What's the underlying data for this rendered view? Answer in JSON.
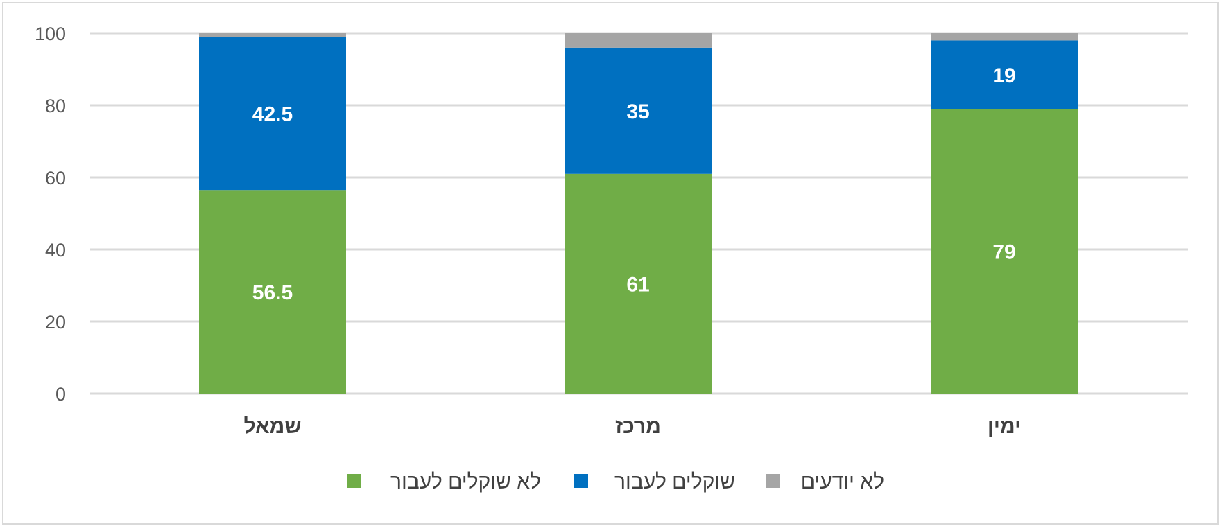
{
  "chart_data": {
    "type": "bar",
    "stacked": true,
    "categories": [
      "שמאל",
      "מרכז",
      "ימין"
    ],
    "series": [
      {
        "name": "לא שוקלים לעבור",
        "color": "#70ad47",
        "values": [
          56.5,
          61,
          79
        ]
      },
      {
        "name": "שוקלים לעבור",
        "color": "#0070c0",
        "values": [
          42.5,
          35,
          19
        ]
      },
      {
        "name": "לא יודעים",
        "color": "#a5a5a5",
        "values": [
          1,
          4,
          2
        ]
      }
    ],
    "data_labels_shown": [
      "56.5",
      "61",
      "79",
      "42.5",
      "35",
      "19"
    ],
    "ylim": [
      0,
      100
    ],
    "yticks": [
      "0",
      "20",
      "40",
      "60",
      "80",
      "100"
    ],
    "grid": true,
    "legend_position": "bottom"
  }
}
